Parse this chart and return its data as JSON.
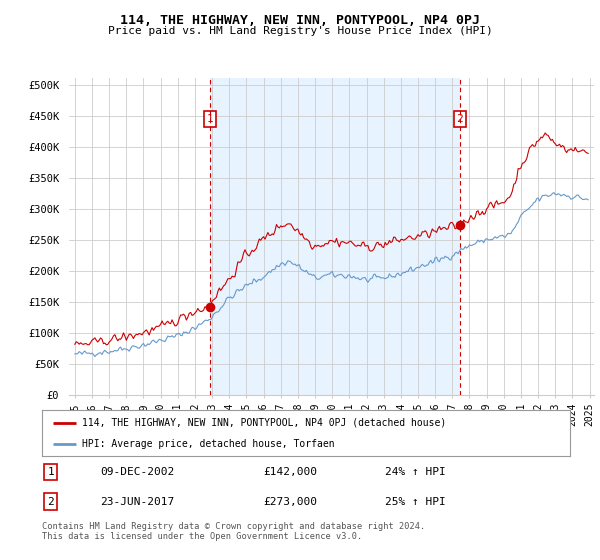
{
  "title": "114, THE HIGHWAY, NEW INN, PONTYPOOL, NP4 0PJ",
  "subtitle": "Price paid vs. HM Land Registry's House Price Index (HPI)",
  "legend_label_red": "114, THE HIGHWAY, NEW INN, PONTYPOOL, NP4 0PJ (detached house)",
  "legend_label_blue": "HPI: Average price, detached house, Torfaen",
  "footer": "Contains HM Land Registry data © Crown copyright and database right 2024.\nThis data is licensed under the Open Government Licence v3.0.",
  "transaction1_label": "1",
  "transaction1_date": "09-DEC-2002",
  "transaction1_price": "£142,000",
  "transaction1_hpi": "24% ↑ HPI",
  "transaction2_label": "2",
  "transaction2_date": "23-JUN-2017",
  "transaction2_price": "£273,000",
  "transaction2_hpi": "25% ↑ HPI",
  "ylim": [
    0,
    510000
  ],
  "yticks": [
    0,
    50000,
    100000,
    150000,
    200000,
    250000,
    300000,
    350000,
    400000,
    450000,
    500000
  ],
  "ytick_labels": [
    "£0",
    "£50K",
    "£100K",
    "£150K",
    "£200K",
    "£250K",
    "£300K",
    "£350K",
    "£400K",
    "£450K",
    "£500K"
  ],
  "vline1_x": 2002.92,
  "vline2_x": 2017.47,
  "dot1_x": 2002.92,
  "dot1_y": 142000,
  "dot2_x": 2017.47,
  "dot2_y": 273000,
  "red_color": "#cc0000",
  "blue_color": "#6699cc",
  "blue_fill": "#ddeeff",
  "vline_color": "#cc0000",
  "background_color": "#ffffff",
  "grid_color": "#cccccc",
  "xlim_left": 1994.7,
  "xlim_right": 2025.3
}
